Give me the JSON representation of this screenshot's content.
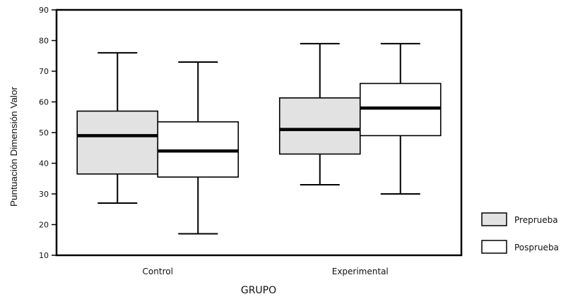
{
  "chart_data": {
    "type": "boxplot",
    "xlabel": "GRUPO",
    "ylabel": "Puntuación Dimensión Valor",
    "ylim": [
      10,
      90
    ],
    "yticks": [
      10,
      20,
      30,
      40,
      50,
      60,
      70,
      80,
      90
    ],
    "grid": false,
    "legend_position": "bottom-right",
    "categories": [
      "Control",
      "Experimental"
    ],
    "series": [
      {
        "name": "Preprueba",
        "color": "#e2e2e2",
        "boxes": [
          {
            "min": 27,
            "q1": 36.5,
            "median": 49,
            "q3": 57,
            "max": 76
          },
          {
            "min": 33,
            "q1": 43,
            "median": 51,
            "q3": 61.3,
            "max": 79
          }
        ]
      },
      {
        "name": "Posprueba",
        "color": "#ffffff",
        "boxes": [
          {
            "min": 17,
            "q1": 35.5,
            "median": 44,
            "q3": 53.5,
            "max": 73
          },
          {
            "min": 30,
            "q1": 49,
            "median": 58,
            "q3": 66,
            "max": 79
          }
        ]
      }
    ]
  }
}
